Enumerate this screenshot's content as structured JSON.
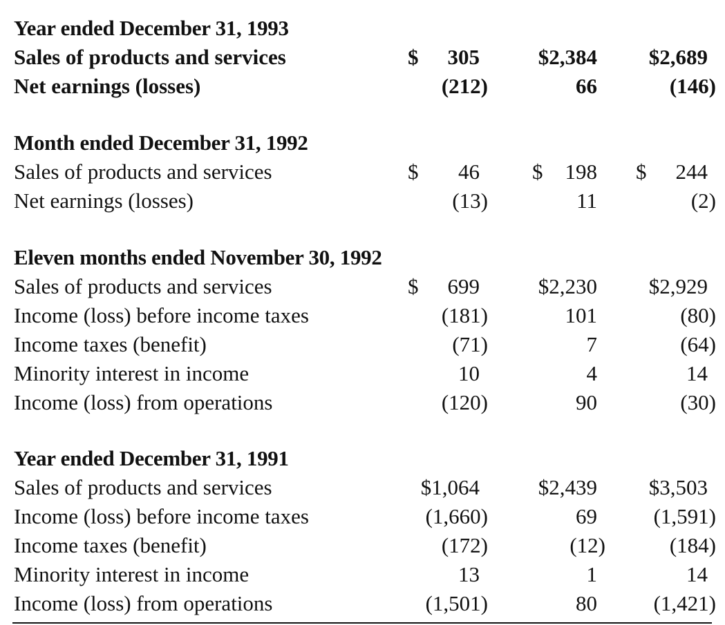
{
  "sections": [
    {
      "heading": "Year ended December 31, 1993",
      "rows": [
        {
          "label": "Sales of products and services",
          "bold": true,
          "cells": [
            {
              "cur": "$",
              "num": "305"
            },
            {
              "cur": "",
              "num": "$2,384"
            },
            {
              "cur": "",
              "num": "$2,689"
            }
          ]
        },
        {
          "label": "Net earnings (losses)",
          "bold": true,
          "cells": [
            {
              "cur": "",
              "num": "(212)"
            },
            {
              "cur": "",
              "num": "66"
            },
            {
              "cur": "",
              "num": "(146)"
            }
          ]
        }
      ]
    },
    {
      "heading": "Month ended December 31, 1992",
      "rows": [
        {
          "label": "Sales of products and services",
          "bold": false,
          "cells": [
            {
              "cur": "$",
              "num": "46"
            },
            {
              "cur": "$",
              "num": "198"
            },
            {
              "cur": "$",
              "num": "244"
            }
          ]
        },
        {
          "label": "Net earnings (losses)",
          "bold": false,
          "cells": [
            {
              "cur": "",
              "num": "(13)"
            },
            {
              "cur": "",
              "num": "11"
            },
            {
              "cur": "",
              "num": "(2)"
            }
          ]
        }
      ]
    },
    {
      "heading": "Eleven months ended November 30, 1992",
      "rows": [
        {
          "label": "Sales of products and services",
          "bold": false,
          "cells": [
            {
              "cur": "$",
              "num": "699"
            },
            {
              "cur": "",
              "num": "$2,230"
            },
            {
              "cur": "",
              "num": "$2,929"
            }
          ]
        },
        {
          "label": "Income (loss) before income taxes",
          "bold": false,
          "cells": [
            {
              "cur": "",
              "num": "(181)"
            },
            {
              "cur": "",
              "num": "101"
            },
            {
              "cur": "",
              "num": "(80)"
            }
          ]
        },
        {
          "label": "Income taxes (benefit)",
          "bold": false,
          "cells": [
            {
              "cur": "",
              "num": "(71)"
            },
            {
              "cur": "",
              "num": "7"
            },
            {
              "cur": "",
              "num": "(64)"
            }
          ]
        },
        {
          "label": "Minority interest in income",
          "bold": false,
          "cells": [
            {
              "cur": "",
              "num": "10"
            },
            {
              "cur": "",
              "num": "4"
            },
            {
              "cur": "",
              "num": "14"
            }
          ]
        },
        {
          "label": "Income (loss) from operations",
          "bold": false,
          "cells": [
            {
              "cur": "",
              "num": "(120)"
            },
            {
              "cur": "",
              "num": "90"
            },
            {
              "cur": "",
              "num": "(30)"
            }
          ]
        }
      ]
    },
    {
      "heading": "Year ended December 31, 1991",
      "rows": [
        {
          "label": "Sales of products and services",
          "bold": false,
          "cells": [
            {
              "cur": "",
              "num": "$1,064"
            },
            {
              "cur": "",
              "num": "$2,439"
            },
            {
              "cur": "",
              "num": "$3,503"
            }
          ]
        },
        {
          "label": "Income (loss) before income taxes",
          "bold": false,
          "cells": [
            {
              "cur": "",
              "num": "(1,660)"
            },
            {
              "cur": "",
              "num": "69"
            },
            {
              "cur": "",
              "num": "(1,591)"
            }
          ]
        },
        {
          "label": "Income taxes (benefit)",
          "bold": false,
          "cells": [
            {
              "cur": "",
              "num": "(172)"
            },
            {
              "cur": "",
              "num": "(12)"
            },
            {
              "cur": "",
              "num": "(184)"
            }
          ]
        },
        {
          "label": "Minority interest in income",
          "bold": false,
          "cells": [
            {
              "cur": "",
              "num": "13"
            },
            {
              "cur": "",
              "num": "1"
            },
            {
              "cur": "",
              "num": "14"
            }
          ]
        },
        {
          "label": "Income (loss) from operations",
          "bold": false,
          "cells": [
            {
              "cur": "",
              "num": "(1,501)"
            },
            {
              "cur": "",
              "num": "80"
            },
            {
              "cur": "",
              "num": "(1,421)"
            }
          ]
        }
      ]
    }
  ]
}
